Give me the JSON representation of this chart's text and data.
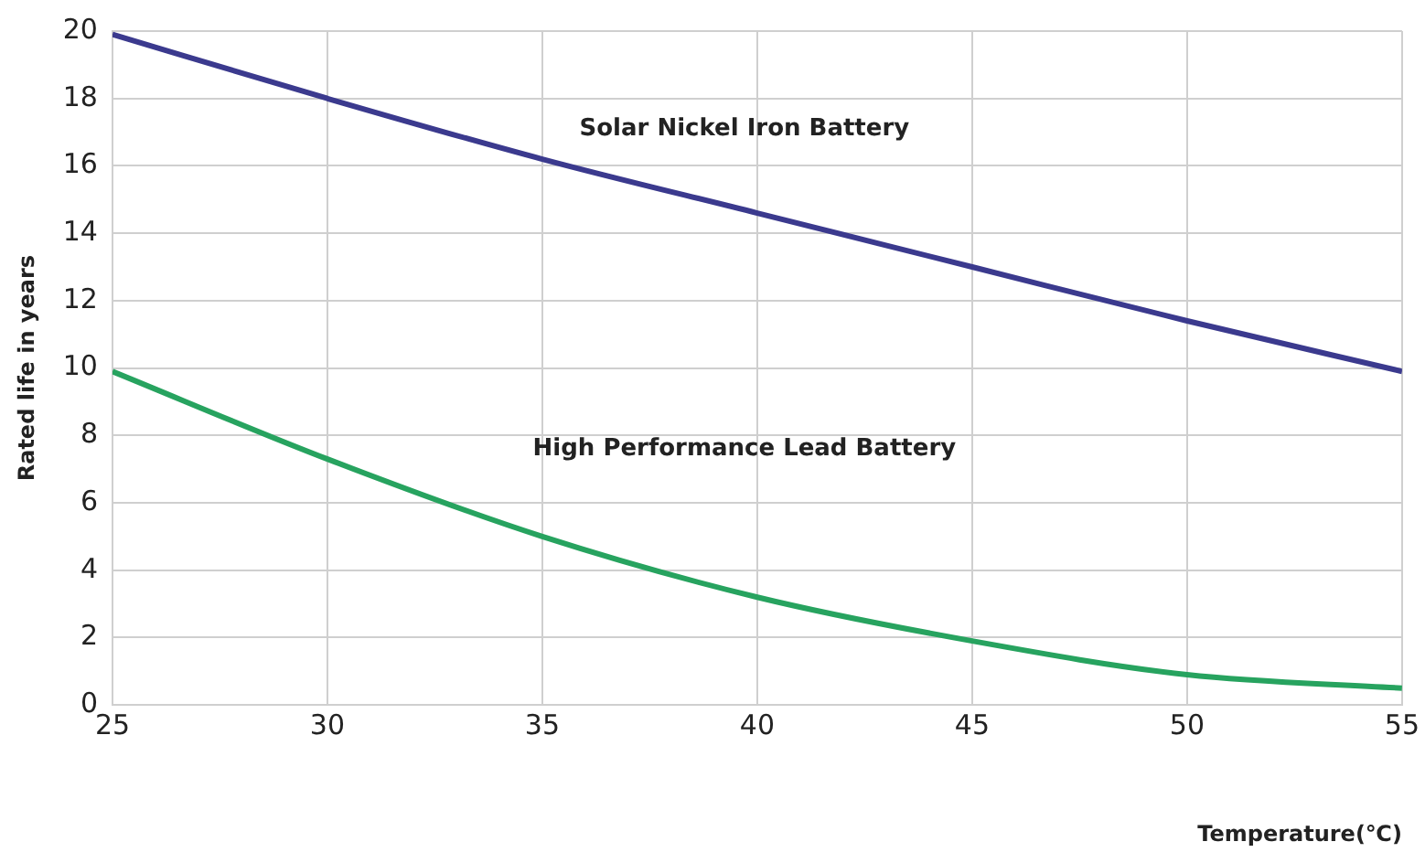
{
  "chart_data": {
    "type": "line",
    "xlabel": "Temperature(℃)",
    "ylabel": "Rated life in years",
    "x": [
      25,
      30,
      35,
      40,
      45,
      50,
      55
    ],
    "series": [
      {
        "name": "Solar Nickel Iron Battery",
        "color": "#3b3a8e",
        "values": [
          19.9,
          18.0,
          16.2,
          14.6,
          13.0,
          11.4,
          9.9
        ]
      },
      {
        "name": "High Performance Lead Battery",
        "color": "#27a35f",
        "values": [
          9.9,
          7.3,
          5.0,
          3.2,
          1.9,
          0.9,
          0.5
        ]
      }
    ],
    "xlim": [
      25,
      55
    ],
    "xticks": [
      25,
      30,
      35,
      40,
      45,
      50,
      55
    ],
    "ylim": [
      0,
      20
    ],
    "yticks": [
      0,
      2,
      4,
      6,
      8,
      10,
      12,
      14,
      16,
      18,
      20
    ],
    "grid": true,
    "legend": false,
    "marker": "none",
    "line_style": "solid"
  }
}
